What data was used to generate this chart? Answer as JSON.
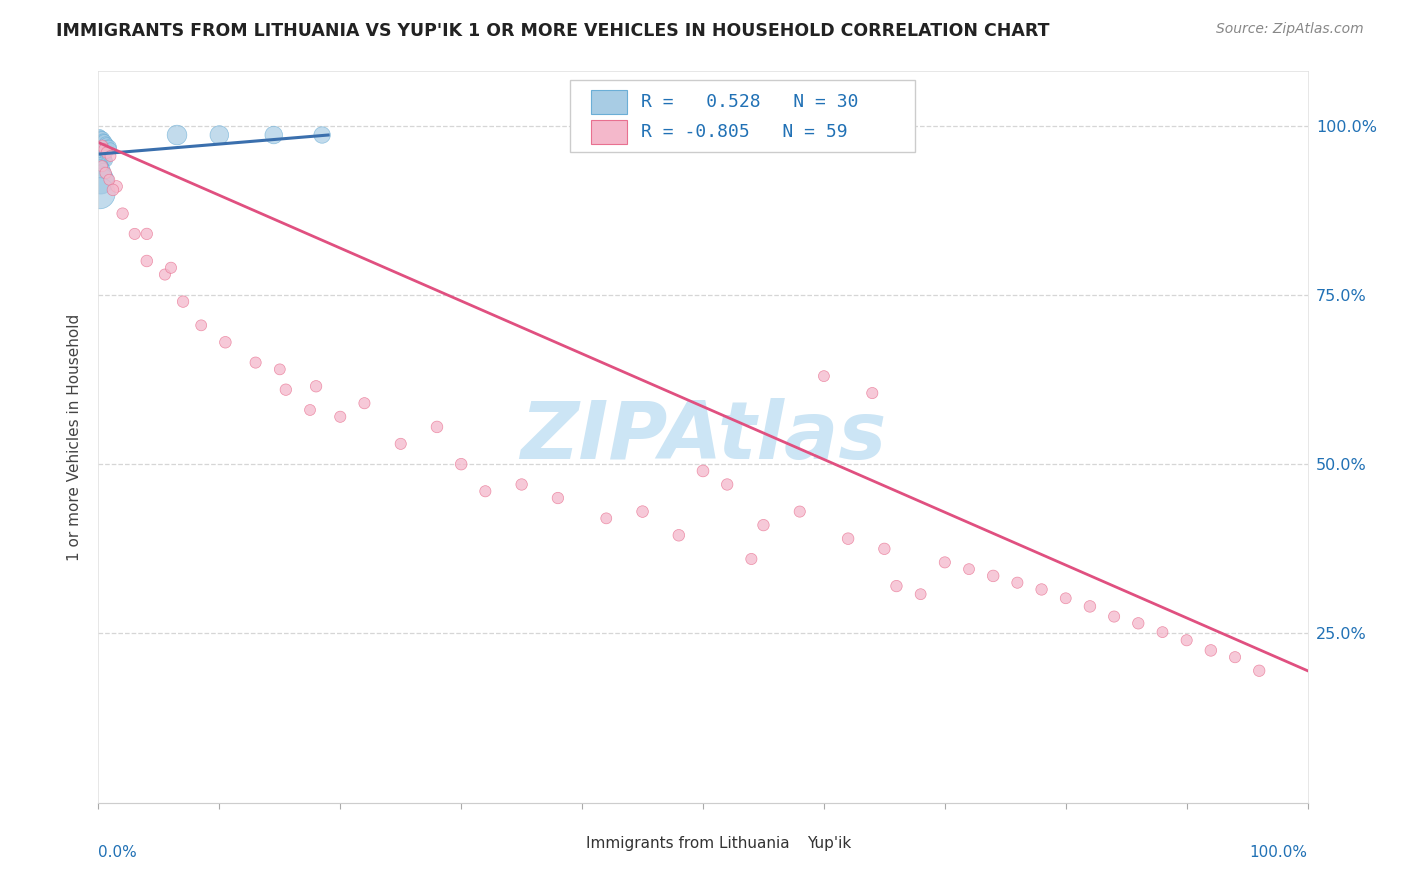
{
  "title": "IMMIGRANTS FROM LITHUANIA VS YUP'IK 1 OR MORE VEHICLES IN HOUSEHOLD CORRELATION CHART",
  "source": "Source: ZipAtlas.com",
  "ylabel": "1 or more Vehicles in Household",
  "legend_label1": "Immigrants from Lithuania",
  "legend_label2": "Yup'ik",
  "R1": 0.528,
  "N1": 30,
  "R2": -0.805,
  "N2": 59,
  "watermark": "ZIPAtlas",
  "blue_color": "#a8cce4",
  "blue_line_color": "#3a6fad",
  "blue_edge_color": "#6baed6",
  "pink_color": "#f4b8cb",
  "pink_line_color": "#e05080",
  "pink_edge_color": "#e87090",
  "blue_x": [
    0.001,
    0.002,
    0.003,
    0.004,
    0.005,
    0.006,
    0.007,
    0.008,
    0.009,
    0.01,
    0.002,
    0.003,
    0.004,
    0.005,
    0.006,
    0.007,
    0.001,
    0.002,
    0.003,
    0.004,
    0.001,
    0.002,
    0.001,
    0.065,
    0.1,
    0.145,
    0.185,
    0.002,
    0.003,
    0.004
  ],
  "blue_y": [
    0.985,
    0.982,
    0.98,
    0.978,
    0.976,
    0.974,
    0.972,
    0.97,
    0.968,
    0.966,
    0.958,
    0.956,
    0.954,
    0.952,
    0.95,
    0.948,
    0.94,
    0.938,
    0.936,
    0.934,
    0.92,
    0.918,
    0.9,
    0.986,
    0.986,
    0.986,
    0.986,
    0.965,
    0.963,
    0.961
  ],
  "blue_sizes": [
    80,
    100,
    120,
    90,
    110,
    85,
    95,
    75,
    105,
    70,
    80,
    90,
    70,
    85,
    75,
    65,
    150,
    130,
    110,
    100,
    400,
    350,
    500,
    200,
    180,
    160,
    140,
    55,
    50,
    45
  ],
  "pink_x": [
    0.003,
    0.005,
    0.007,
    0.01,
    0.015,
    0.02,
    0.03,
    0.04,
    0.055,
    0.07,
    0.085,
    0.105,
    0.13,
    0.155,
    0.175,
    0.04,
    0.06,
    0.5,
    0.52,
    0.58,
    0.62,
    0.65,
    0.7,
    0.72,
    0.74,
    0.76,
    0.78,
    0.8,
    0.82,
    0.84,
    0.86,
    0.88,
    0.9,
    0.92,
    0.94,
    0.96,
    0.003,
    0.006,
    0.009,
    0.012,
    0.25,
    0.38,
    0.42,
    0.48,
    0.54,
    0.66,
    0.68,
    0.2,
    0.3,
    0.35,
    0.6,
    0.64,
    0.55,
    0.45,
    0.32,
    0.15,
    0.18,
    0.22,
    0.28
  ],
  "pink_y": [
    0.97,
    0.965,
    0.96,
    0.955,
    0.91,
    0.87,
    0.84,
    0.8,
    0.78,
    0.74,
    0.705,
    0.68,
    0.65,
    0.61,
    0.58,
    0.84,
    0.79,
    0.49,
    0.47,
    0.43,
    0.39,
    0.375,
    0.355,
    0.345,
    0.335,
    0.325,
    0.315,
    0.302,
    0.29,
    0.275,
    0.265,
    0.252,
    0.24,
    0.225,
    0.215,
    0.195,
    0.94,
    0.93,
    0.92,
    0.905,
    0.53,
    0.45,
    0.42,
    0.395,
    0.36,
    0.32,
    0.308,
    0.57,
    0.5,
    0.47,
    0.63,
    0.605,
    0.41,
    0.43,
    0.46,
    0.64,
    0.615,
    0.59,
    0.555
  ],
  "pink_sizes": [
    70,
    65,
    68,
    62,
    72,
    68,
    65,
    70,
    65,
    68,
    62,
    70,
    65,
    68,
    62,
    68,
    65,
    72,
    68,
    65,
    70,
    68,
    65,
    62,
    70,
    65,
    68,
    62,
    70,
    65,
    68,
    62,
    65,
    70,
    65,
    68,
    65,
    68,
    62,
    70,
    65,
    68,
    62,
    70,
    65,
    68,
    62,
    65,
    70,
    68,
    62,
    65,
    68,
    70,
    65,
    62,
    68,
    65,
    70
  ],
  "blue_trend_x": [
    0.001,
    0.19
  ],
  "blue_trend_y": [
    0.958,
    0.986
  ],
  "pink_trend_x": [
    0.0,
    1.0
  ],
  "pink_trend_y": [
    0.975,
    0.195
  ],
  "yticks": [
    0.25,
    0.5,
    0.75,
    1.0
  ],
  "ytick_labels_right": [
    "25.0%",
    "50.0%",
    "75.0%",
    "100.0%"
  ],
  "xlim": [
    0.0,
    1.0
  ],
  "ylim": [
    0.0,
    1.08
  ],
  "background_color": "#ffffff",
  "grid_color": "#cccccc",
  "tick_label_color": "#2171b5",
  "title_color": "#222222",
  "source_color": "#888888",
  "watermark_color": "#cce5f5"
}
